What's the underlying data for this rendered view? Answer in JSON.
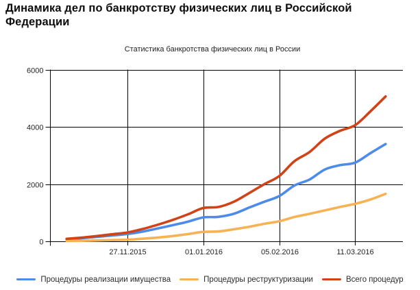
{
  "page": {
    "title": "Динамика дел по банкротству физических лиц в Российской Федерации"
  },
  "chart_data": {
    "type": "line",
    "title": "Статистика банкротства физических лиц в России",
    "xlabel": "",
    "ylabel": "",
    "x": [
      "30.10.2015",
      "06.11.2015",
      "13.11.2015",
      "20.11.2015",
      "27.11.2015",
      "04.12.2015",
      "11.12.2015",
      "18.12.2015",
      "25.12.2015",
      "01.01.2016",
      "08.01.2016",
      "15.01.2016",
      "22.01.2016",
      "29.01.2016",
      "05.02.2016",
      "12.02.2016",
      "19.02.2016",
      "26.02.2016",
      "04.03.2016",
      "11.03.2016",
      "18.03.2016",
      "25.03.2016"
    ],
    "series": [
      {
        "name": "Процедуры реализации имущества",
        "color": "#4c8be8",
        "values": [
          75,
          110,
          155,
          205,
          255,
          340,
          450,
          565,
          690,
          835,
          855,
          960,
          1175,
          1380,
          1580,
          1950,
          2160,
          2510,
          2660,
          2750,
          3080,
          3400
        ]
      },
      {
        "name": "Процедуры реструктуризации",
        "color": "#f7b254",
        "values": [
          12,
          20,
          30,
          42,
          55,
          90,
          130,
          185,
          255,
          330,
          345,
          420,
          505,
          610,
          700,
          850,
          960,
          1080,
          1200,
          1310,
          1460,
          1660
        ]
      },
      {
        "name": "Всего процедур",
        "color": "#d04318",
        "values": [
          87,
          130,
          185,
          247,
          310,
          430,
          580,
          750,
          945,
          1165,
          1200,
          1380,
          1680,
          1990,
          2280,
          2800,
          3120,
          3590,
          3860,
          4060,
          4540,
          5060
        ]
      }
    ],
    "x_tick_labels": [
      "27.11.2015",
      "01.01.2016",
      "05.02.2016",
      "11.03.2016"
    ],
    "x_tick_indices": [
      4,
      9,
      14,
      19
    ],
    "y_ticks": [
      0,
      2000,
      4000,
      6000
    ],
    "ylim": [
      0,
      6000
    ],
    "grid": true,
    "gridline_color": "#000000",
    "legend_position": "bottom"
  }
}
